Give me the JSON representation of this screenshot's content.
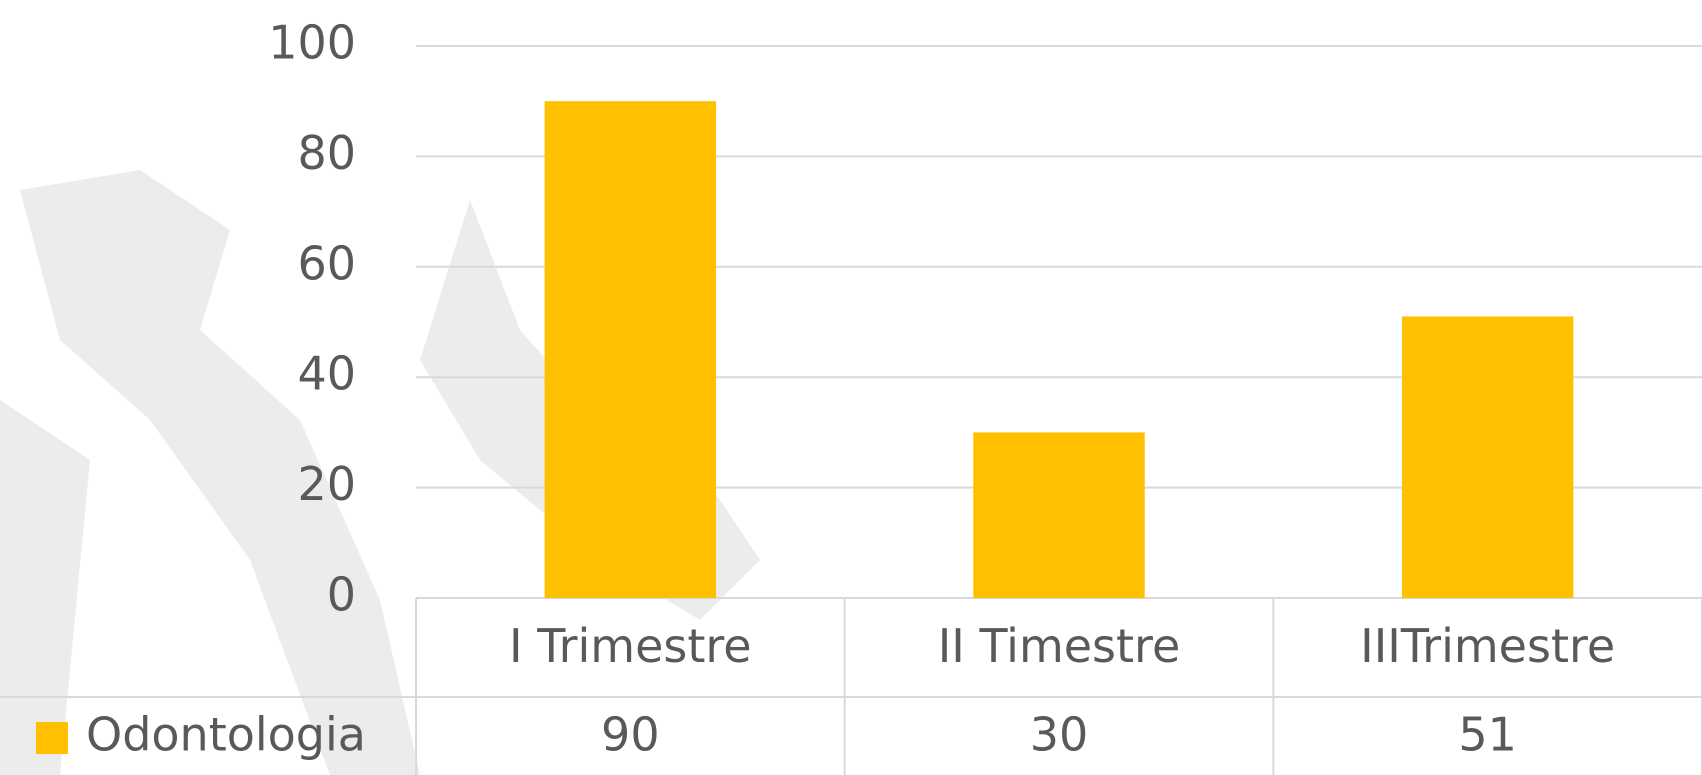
{
  "chart_data": {
    "type": "bar",
    "categories": [
      "I Trimestre",
      "II Timestre",
      "IIITrimestre"
    ],
    "series": [
      {
        "name": "Odontologia",
        "color": "#ffc000",
        "values": [
          90,
          30,
          51
        ]
      }
    ],
    "ylim": [
      0,
      100
    ],
    "yticks": [
      0,
      20,
      40,
      60,
      80,
      100
    ],
    "grid": true
  }
}
